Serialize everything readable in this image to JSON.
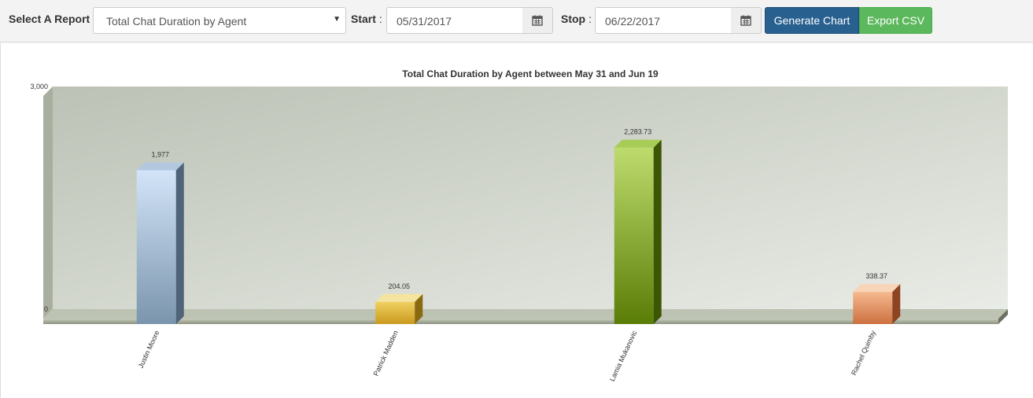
{
  "toolbar": {
    "report_label": "Select A Report",
    "report_value": "Total Chat Duration by Agent",
    "start_label": "Start",
    "start_value": "05/31/2017",
    "stop_label": "Stop",
    "stop_value": "06/22/2017",
    "colon": ":",
    "generate_label": "Generate Chart",
    "export_label": "Export CSV",
    "icons": {
      "dropdown": "caret-down-icon",
      "calendar": "calendar-icon"
    }
  },
  "chart_data": {
    "type": "bar",
    "title": "Total Chat Duration by Agent between May 31 and Jun 19",
    "xlabel": "",
    "ylabel": "",
    "categories": [
      "Justin Moore",
      "Patrick Madden",
      "Lamia Mukanovic",
      "Rachel Quimby"
    ],
    "values": [
      1977,
      204.05,
      2283.73,
      338.37
    ],
    "value_labels": [
      "1,977",
      "204.05",
      "2,283.73",
      "338.37"
    ],
    "y_ticks": [
      "0",
      "3,000"
    ],
    "ylim": [
      0,
      3000
    ],
    "grid": false,
    "style": "3d",
    "colors": [
      {
        "front_top": "#d3e4f8",
        "front_bottom": "#7a95ad",
        "side": "#4f6478",
        "top": "#b3c8de"
      },
      {
        "front_top": "#f0d060",
        "front_bottom": "#c99a1e",
        "side": "#8a6a10",
        "top": "#f4e4a0"
      },
      {
        "front_top": "#bedc6e",
        "front_bottom": "#5a7d06",
        "side": "#3d5604",
        "top": "#a8cc58"
      },
      {
        "front_top": "#f5b98e",
        "front_bottom": "#cc7040",
        "side": "#8c4422",
        "top": "#f8d4b8"
      }
    ]
  }
}
